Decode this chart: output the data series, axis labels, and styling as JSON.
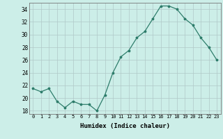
{
  "x": [
    0,
    1,
    2,
    3,
    4,
    5,
    6,
    7,
    8,
    9,
    10,
    11,
    12,
    13,
    14,
    15,
    16,
    17,
    18,
    19,
    20,
    21,
    22,
    23
  ],
  "y": [
    21.5,
    21.0,
    21.5,
    19.5,
    18.5,
    19.5,
    19.0,
    19.0,
    18.0,
    20.5,
    24.0,
    26.5,
    27.5,
    29.5,
    30.5,
    32.5,
    34.5,
    34.5,
    34.0,
    32.5,
    31.5,
    29.5,
    28.0,
    26.0
  ],
  "title": "",
  "xlabel": "Humidex (Indice chaleur)",
  "ylabel": "",
  "xlim": [
    -0.5,
    23.5
  ],
  "ylim": [
    17.5,
    35.0
  ],
  "yticks": [
    18,
    20,
    22,
    24,
    26,
    28,
    30,
    32,
    34
  ],
  "xticks": [
    0,
    1,
    2,
    3,
    4,
    5,
    6,
    7,
    8,
    9,
    10,
    11,
    12,
    13,
    14,
    15,
    16,
    17,
    18,
    19,
    20,
    21,
    22,
    23
  ],
  "line_color": "#2e7d6b",
  "marker": "*",
  "marker_size": 2.5,
  "bg_color": "#cceee8",
  "grid_color": "#b0c8c8",
  "fig_bg": "#cceee8"
}
